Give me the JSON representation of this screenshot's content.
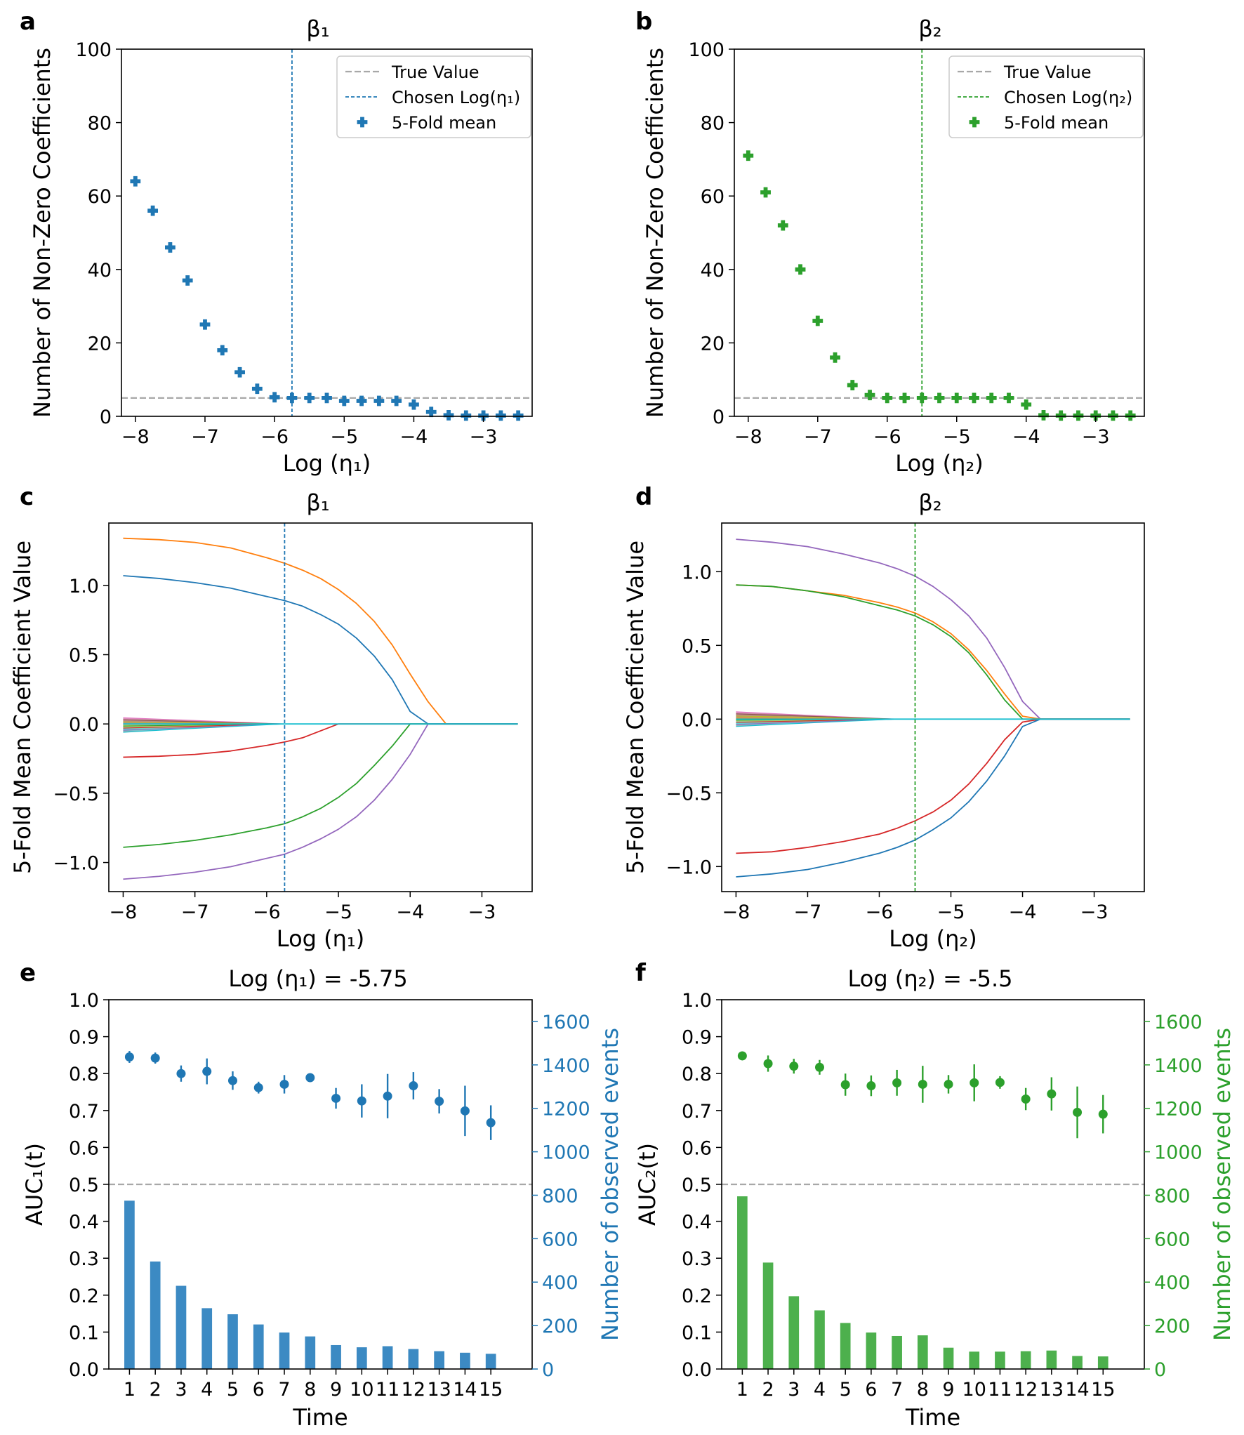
{
  "colors": {
    "blue": "#1f77b4",
    "green": "#2ca02c",
    "blue_bar": "#3c8ac3",
    "green_bar": "#4db04d",
    "orange": "#ff7f0e",
    "red": "#d62728",
    "purple": "#9467bd",
    "cyan": "#17becf",
    "gray": "#a8a8a8"
  },
  "chart_data": [
    {
      "id": "a",
      "panel_label": "a",
      "type": "scatter",
      "title": "β₁",
      "xlabel": "Log (η₁)",
      "ylabel": "Number of Non-Zero Coefficients",
      "xlim": [
        -8.2,
        -2.3
      ],
      "ylim": [
        0,
        100
      ],
      "xticks": [
        -8,
        -7,
        -6,
        -5,
        -4,
        -3
      ],
      "xtick_labels": [
        "−8",
        "−7",
        "−6",
        "−5",
        "−4",
        "−3"
      ],
      "yticks": [
        0,
        20,
        40,
        60,
        80,
        100
      ],
      "ytick_labels": [
        "0",
        "20",
        "40",
        "60",
        "80",
        "100"
      ],
      "true_value": 5,
      "chosen": -5.75,
      "color_key": "blue",
      "legend": [
        "True Value",
        "Chosen Log(η₁)",
        "5-Fold mean"
      ],
      "x": [
        -8,
        -7.75,
        -7.5,
        -7.25,
        -7,
        -6.75,
        -6.5,
        -6.25,
        -6,
        -5.75,
        -5.5,
        -5.25,
        -5,
        -4.75,
        -4.5,
        -4.25,
        -4,
        -3.75,
        -3.5,
        -3.25,
        -3,
        -2.75,
        -2.5
      ],
      "y": [
        64,
        56,
        46,
        37,
        25,
        18,
        12,
        7.5,
        5.2,
        5,
        5,
        5,
        4.2,
        4.2,
        4.2,
        4.2,
        3.2,
        1.2,
        0.3,
        0.2,
        0.2,
        0.2,
        0.2
      ]
    },
    {
      "id": "b",
      "panel_label": "b",
      "type": "scatter",
      "title": "β₂",
      "xlabel": "Log (η₂)",
      "ylabel": "Number of Non-Zero Coefficients",
      "xlim": [
        -8.2,
        -2.3
      ],
      "ylim": [
        0,
        100
      ],
      "xticks": [
        -8,
        -7,
        -6,
        -5,
        -4,
        -3
      ],
      "xtick_labels": [
        "−8",
        "−7",
        "−6",
        "−5",
        "−4",
        "−3"
      ],
      "yticks": [
        0,
        20,
        40,
        60,
        80,
        100
      ],
      "ytick_labels": [
        "0",
        "20",
        "40",
        "60",
        "80",
        "100"
      ],
      "true_value": 5,
      "chosen": -5.5,
      "color_key": "green",
      "legend": [
        "True Value",
        "Chosen Log(η₂)",
        "5-Fold mean"
      ],
      "x": [
        -8,
        -7.75,
        -7.5,
        -7.25,
        -7,
        -6.75,
        -6.5,
        -6.25,
        -6,
        -5.75,
        -5.5,
        -5.25,
        -5,
        -4.75,
        -4.5,
        -4.25,
        -4,
        -3.75,
        -3.5,
        -3.25,
        -3,
        -2.75,
        -2.5
      ],
      "y": [
        71,
        61,
        52,
        40,
        26,
        16,
        8.5,
        5.8,
        5,
        5,
        5,
        5,
        5,
        5,
        5,
        5,
        3.2,
        0.3,
        0.2,
        0.2,
        0.2,
        0.2,
        0.2
      ]
    },
    {
      "id": "c",
      "panel_label": "c",
      "type": "line",
      "title": "β₁",
      "xlabel": "Log (η₁)",
      "ylabel": "5-Fold Mean Coefficient Value",
      "xlim": [
        -8.2,
        -2.3
      ],
      "ylim": [
        -1.21,
        1.45
      ],
      "xticks": [
        -8,
        -7,
        -6,
        -5,
        -4,
        -3
      ],
      "xtick_labels": [
        "−8",
        "−7",
        "−6",
        "−5",
        "−4",
        "−3"
      ],
      "yticks": [
        -1.0,
        -0.5,
        0.0,
        0.5,
        1.0
      ],
      "ytick_labels": [
        "−1.0",
        "−0.5",
        "0.0",
        "0.5",
        "1.0"
      ],
      "chosen": -5.75,
      "color_key": "blue",
      "series": [
        {
          "name": "coef-orange",
          "color_key": "orange",
          "x": [
            -8,
            -7.5,
            -7,
            -6.5,
            -6,
            -5.75,
            -5.5,
            -5.25,
            -5,
            -4.75,
            -4.5,
            -4.25,
            -4,
            -3.75,
            -3.5,
            -3,
            -2.5
          ],
          "y": [
            1.34,
            1.33,
            1.31,
            1.27,
            1.2,
            1.16,
            1.11,
            1.05,
            0.97,
            0.87,
            0.74,
            0.57,
            0.36,
            0.16,
            0,
            0,
            0
          ]
        },
        {
          "name": "coef-blue",
          "color_key": "blue",
          "x": [
            -8,
            -7.5,
            -7,
            -6.5,
            -6,
            -5.75,
            -5.5,
            -5.25,
            -5,
            -4.75,
            -4.5,
            -4.25,
            -4,
            -3.75,
            -3.5,
            -3,
            -2.5
          ],
          "y": [
            1.07,
            1.05,
            1.02,
            0.98,
            0.92,
            0.89,
            0.85,
            0.79,
            0.72,
            0.62,
            0.49,
            0.32,
            0.09,
            0,
            0,
            0,
            0
          ]
        },
        {
          "name": "coef-red",
          "color_key": "red",
          "x": [
            -8,
            -7.5,
            -7,
            -6.5,
            -6,
            -5.75,
            -5.5,
            -5.25,
            -5,
            -4.5,
            -4,
            -3.5,
            -3,
            -2.5
          ],
          "y": [
            -0.24,
            -0.233,
            -0.22,
            -0.195,
            -0.155,
            -0.13,
            -0.1,
            -0.05,
            0,
            0,
            0,
            0,
            0,
            0
          ]
        },
        {
          "name": "coef-green",
          "color_key": "green",
          "x": [
            -8,
            -7.5,
            -7,
            -6.5,
            -6,
            -5.75,
            -5.5,
            -5.25,
            -5,
            -4.75,
            -4.5,
            -4.25,
            -4,
            -3.75,
            -3.5,
            -3,
            -2.5
          ],
          "y": [
            -0.89,
            -0.87,
            -0.84,
            -0.8,
            -0.75,
            -0.72,
            -0.67,
            -0.61,
            -0.53,
            -0.43,
            -0.3,
            -0.16,
            0,
            0,
            0,
            0,
            0
          ]
        },
        {
          "name": "coef-purple",
          "color_key": "purple",
          "x": [
            -8,
            -7.5,
            -7,
            -6.5,
            -6,
            -5.75,
            -5.5,
            -5.25,
            -5,
            -4.75,
            -4.5,
            -4.25,
            -4,
            -3.75,
            -3.5,
            -3,
            -2.5
          ],
          "y": [
            -1.12,
            -1.1,
            -1.07,
            -1.03,
            -0.97,
            -0.94,
            -0.89,
            -0.83,
            -0.76,
            -0.67,
            -0.55,
            -0.4,
            -0.22,
            0,
            0,
            0,
            0
          ]
        },
        {
          "name": "coef-cyan",
          "color_key": "cyan",
          "x": [
            -8,
            -2.5
          ],
          "y": [
            0,
            0
          ]
        }
      ],
      "noise_band": {
        "x_start": -8,
        "x_end": -5.75,
        "y_top": 0.045,
        "y_bottom": -0.06
      }
    },
    {
      "id": "d",
      "panel_label": "d",
      "type": "line",
      "title": "β₂",
      "xlabel": "Log (η₂)",
      "ylabel": "5-Fold Mean Coefficient Value",
      "xlim": [
        -8.2,
        -2.3
      ],
      "ylim": [
        -1.17,
        1.33
      ],
      "xticks": [
        -8,
        -7,
        -6,
        -5,
        -4,
        -3
      ],
      "xtick_labels": [
        "−8",
        "−7",
        "−6",
        "−5",
        "−4",
        "−3"
      ],
      "yticks": [
        -1.0,
        -0.5,
        0.0,
        0.5,
        1.0
      ],
      "ytick_labels": [
        "−1.0",
        "−0.5",
        "0.0",
        "0.5",
        "1.0"
      ],
      "chosen": -5.5,
      "color_key": "green",
      "series": [
        {
          "name": "coef-purple",
          "color_key": "purple",
          "x": [
            -8,
            -7.5,
            -7,
            -6.5,
            -6,
            -5.75,
            -5.5,
            -5.25,
            -5,
            -4.75,
            -4.5,
            -4.25,
            -4,
            -3.75,
            -3.5,
            -3,
            -2.5
          ],
          "y": [
            1.22,
            1.2,
            1.17,
            1.12,
            1.06,
            1.02,
            0.97,
            0.9,
            0.81,
            0.7,
            0.55,
            0.35,
            0.12,
            0,
            0,
            0,
            0
          ]
        },
        {
          "name": "coef-orange",
          "color_key": "orange",
          "x": [
            -8,
            -7.5,
            -7,
            -6.5,
            -6,
            -5.75,
            -5.5,
            -5.25,
            -5,
            -4.75,
            -4.5,
            -4.25,
            -4,
            -3.75,
            -3.5,
            -3,
            -2.5
          ],
          "y": [
            0.91,
            0.9,
            0.87,
            0.84,
            0.79,
            0.76,
            0.72,
            0.66,
            0.58,
            0.47,
            0.33,
            0.17,
            0.02,
            0,
            0,
            0,
            0
          ]
        },
        {
          "name": "coef-green",
          "color_key": "green",
          "x": [
            -8,
            -7.5,
            -7,
            -6.5,
            -6,
            -5.75,
            -5.5,
            -5.25,
            -5,
            -4.75,
            -4.5,
            -4.25,
            -4,
            -3.75,
            -3.5,
            -3,
            -2.5
          ],
          "y": [
            0.91,
            0.9,
            0.87,
            0.83,
            0.77,
            0.74,
            0.7,
            0.64,
            0.56,
            0.45,
            0.3,
            0.13,
            0,
            0,
            0,
            0,
            0
          ]
        },
        {
          "name": "coef-red",
          "color_key": "red",
          "x": [
            -8,
            -7.5,
            -7,
            -6.5,
            -6,
            -5.75,
            -5.5,
            -5.25,
            -5,
            -4.75,
            -4.5,
            -4.25,
            -4,
            -3.75,
            -3.5,
            -3,
            -2.5
          ],
          "y": [
            -0.91,
            -0.9,
            -0.87,
            -0.83,
            -0.78,
            -0.74,
            -0.69,
            -0.63,
            -0.55,
            -0.44,
            -0.3,
            -0.14,
            -0.02,
            0,
            0,
            0,
            0
          ]
        },
        {
          "name": "coef-blue",
          "color_key": "blue",
          "x": [
            -8,
            -7.5,
            -7,
            -6.5,
            -6,
            -5.75,
            -5.5,
            -5.25,
            -5,
            -4.75,
            -4.5,
            -4.25,
            -4,
            -3.75,
            -3.5,
            -3,
            -2.5
          ],
          "y": [
            -1.07,
            -1.05,
            -1.02,
            -0.97,
            -0.91,
            -0.87,
            -0.82,
            -0.75,
            -0.67,
            -0.56,
            -0.42,
            -0.25,
            -0.05,
            0,
            0,
            0,
            0
          ]
        },
        {
          "name": "coef-cyan",
          "color_key": "cyan",
          "x": [
            -8,
            -2.5
          ],
          "y": [
            0,
            0
          ]
        }
      ],
      "noise_band": {
        "x_start": -8,
        "x_end": -5.75,
        "y_top": 0.05,
        "y_bottom": -0.05
      }
    },
    {
      "id": "e",
      "panel_label": "e",
      "type": "bar+errorbar",
      "title": "Log (η₁) = -5.75",
      "xlabel": "Time",
      "ylabel": "AUC₁(t)",
      "y2label": "Number of observed events",
      "xlim": [
        0.2,
        16.6
      ],
      "ylim": [
        0,
        1.0
      ],
      "y2lim": [
        0,
        1700
      ],
      "yticks": [
        0,
        0.1,
        0.2,
        0.3,
        0.4,
        0.5,
        0.6,
        0.7,
        0.8,
        0.9,
        1.0
      ],
      "ytick_labels": [
        "0.0",
        "0.1",
        "0.2",
        "0.3",
        "0.4",
        "0.5",
        "0.6",
        "0.7",
        "0.8",
        "0.9",
        "1.0"
      ],
      "y2ticks": [
        0,
        200,
        400,
        600,
        800,
        1000,
        1200,
        1400,
        1600
      ],
      "y2tick_labels": [
        "0",
        "200",
        "400",
        "600",
        "800",
        "1000",
        "1200",
        "1400",
        "1600"
      ],
      "reference_line": 0.5,
      "color_key": "blue",
      "bar_color_key": "blue_bar",
      "categories": [
        "1",
        "2",
        "3",
        "4",
        "5",
        "6",
        "7",
        "8",
        "9",
        "10",
        "11",
        "12",
        "13",
        "14",
        "15"
      ],
      "auc": [
        0.845,
        0.842,
        0.8,
        0.806,
        0.781,
        0.762,
        0.771,
        0.789,
        0.733,
        0.726,
        0.739,
        0.767,
        0.725,
        0.699,
        0.667
      ],
      "auc_err": [
        0.016,
        0.015,
        0.022,
        0.035,
        0.025,
        0.016,
        0.025,
        0.01,
        0.028,
        0.045,
        0.06,
        0.037,
        0.033,
        0.068,
        0.047
      ],
      "events": [
        775,
        495,
        383,
        280,
        252,
        205,
        168,
        150,
        110,
        100,
        105,
        92,
        82,
        75,
        70
      ]
    },
    {
      "id": "f",
      "panel_label": "f",
      "type": "bar+errorbar",
      "title": "Log (η₂) = -5.5",
      "xlabel": "Time",
      "ylabel": "AUC₂(t)",
      "y2label": "Number of observed events",
      "xlim": [
        0.2,
        16.6
      ],
      "ylim": [
        0,
        1.0
      ],
      "y2lim": [
        0,
        1700
      ],
      "yticks": [
        0,
        0.1,
        0.2,
        0.3,
        0.4,
        0.5,
        0.6,
        0.7,
        0.8,
        0.9,
        1.0
      ],
      "ytick_labels": [
        "0.0",
        "0.1",
        "0.2",
        "0.3",
        "0.4",
        "0.5",
        "0.6",
        "0.7",
        "0.8",
        "0.9",
        "1.0"
      ],
      "y2ticks": [
        0,
        200,
        400,
        600,
        800,
        1000,
        1200,
        1400,
        1600
      ],
      "y2tick_labels": [
        "0",
        "200",
        "400",
        "600",
        "800",
        "1000",
        "1200",
        "1400",
        "1600"
      ],
      "reference_line": 0.5,
      "color_key": "green",
      "bar_color_key": "green_bar",
      "categories": [
        "1",
        "2",
        "3",
        "4",
        "5",
        "6",
        "7",
        "8",
        "9",
        "10",
        "11",
        "12",
        "13",
        "14",
        "15"
      ],
      "auc": [
        0.848,
        0.827,
        0.82,
        0.817,
        0.77,
        0.767,
        0.775,
        0.771,
        0.771,
        0.775,
        0.776,
        0.731,
        0.745,
        0.695,
        0.69
      ],
      "auc_err": [
        0.008,
        0.022,
        0.02,
        0.02,
        0.03,
        0.028,
        0.035,
        0.05,
        0.025,
        0.05,
        0.017,
        0.03,
        0.045,
        0.07,
        0.052
      ],
      "events": [
        795,
        490,
        335,
        270,
        212,
        168,
        152,
        155,
        98,
        80,
        80,
        82,
        85,
        60,
        58
      ]
    }
  ]
}
